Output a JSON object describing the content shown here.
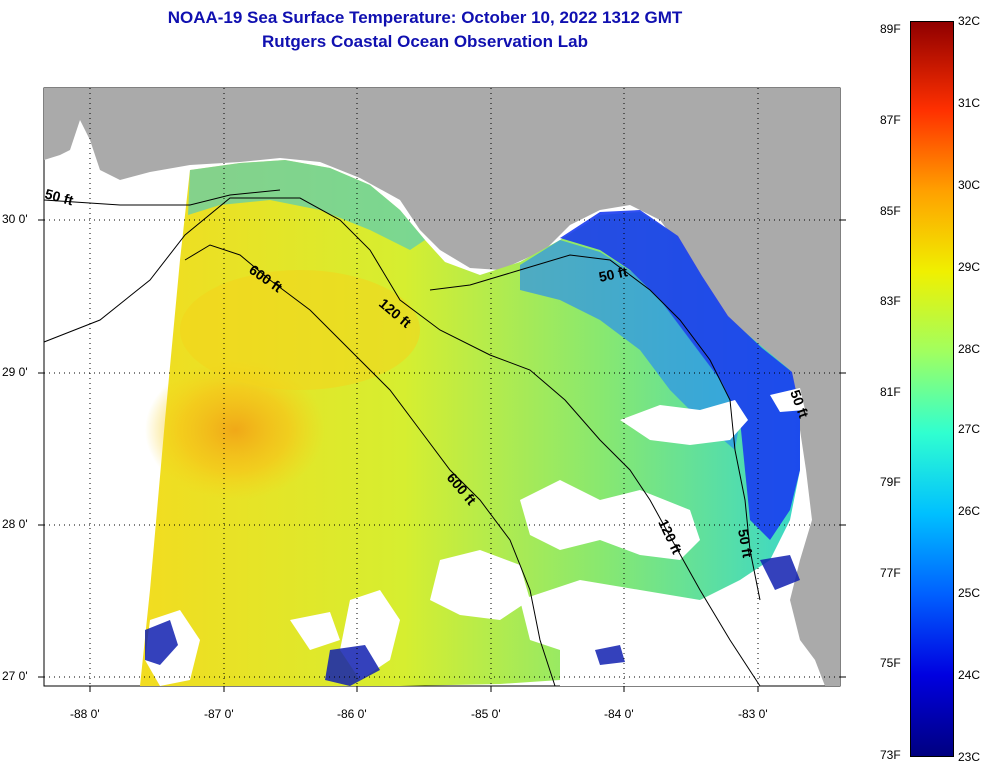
{
  "title": {
    "line1": "NOAA-19 Sea Surface Temperature:  October 10, 2022 1312 GMT",
    "line2": "Rutgers Coastal Ocean Observation Lab"
  },
  "map": {
    "lat_labels": [
      "30 0'",
      "29 0'",
      "28 0'",
      "27 0'"
    ],
    "lon_labels": [
      "-88 0'",
      "-87 0'",
      "-86 0'",
      "-85 0'",
      "-84 0'",
      "-83 0'"
    ],
    "contour_labels": [
      "50 ft",
      "600 ft",
      "120 ft",
      "50 ft",
      "600 ft",
      "120 ft",
      "50 ft",
      "50 ft"
    ],
    "colors": {
      "land": "#aaaaaa",
      "no_data": "#ffffff",
      "contour": "#000000"
    }
  },
  "colorbar": {
    "fahrenheit": [
      "89F",
      "87F",
      "85F",
      "83F",
      "81F",
      "79F",
      "77F",
      "75F",
      "73F"
    ],
    "celsius": [
      "32C",
      "31C",
      "30C",
      "29C",
      "28C",
      "27C",
      "26C",
      "25C",
      "24C",
      "23C"
    ],
    "range_f": [
      73,
      89
    ],
    "range_c": [
      23,
      32
    ]
  }
}
